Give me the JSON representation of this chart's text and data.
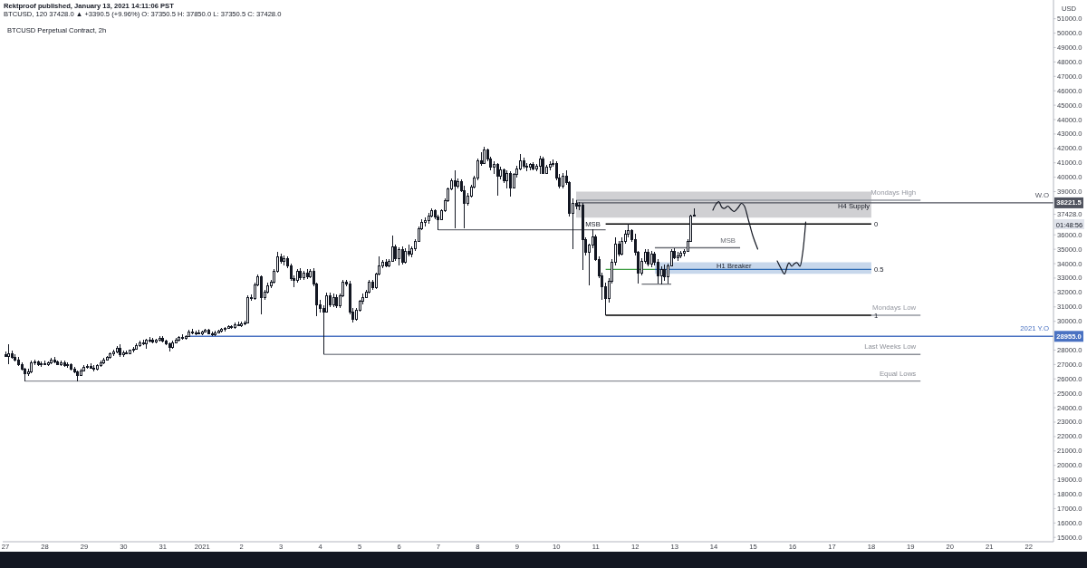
{
  "chart_data": {
    "type": "candlestick",
    "title": "Rektproof published, January 13, 2021 14:11:06 PST",
    "subtitle": "BTCUSD, 120 37428.0 ▲ +3390.5 (+9.96%) O: 37350.5 H: 37850.0 L: 37350.5 C: 37428.0",
    "ylabel": "USD",
    "annotations": [
      "BTCUSD Perpetual Contract, 2h",
      "01:48:56",
      {
        "text": "MSB",
        "x": "2021-01-10T16:00",
        "y": 36750
      },
      {
        "text": "H4 Supply",
        "x": "2021-01-17T02:00",
        "y": 38050
      },
      {
        "text": "H1 Breaker",
        "x": "2021-01-14T00:00",
        "y": 33850
      },
      {
        "text": "0",
        "x": "2021-01-18T00:00",
        "y": 36750
      },
      {
        "text": "0.5",
        "x": "2021-01-18T00:00",
        "y": 33600
      },
      {
        "text": "1",
        "x": "2021-01-18T00:00",
        "y": 30420
      }
    ],
    "xlim": [
      "2020-12-26T22:20",
      "2021-01-22T15:05"
    ],
    "xticks": [
      {
        "value": "2020-12-27",
        "label": "27"
      },
      {
        "value": "2020-12-28",
        "label": "28"
      },
      {
        "value": "2020-12-29",
        "label": "29"
      },
      {
        "value": "2020-12-30",
        "label": "30"
      },
      {
        "value": "2020-12-31",
        "label": "31"
      },
      {
        "value": "2021-01-01",
        "label": "2021"
      },
      {
        "value": "2021-01-02",
        "label": "2"
      },
      {
        "value": "2021-01-03",
        "label": "3"
      },
      {
        "value": "2021-01-04",
        "label": "4"
      },
      {
        "value": "2021-01-05",
        "label": "5"
      },
      {
        "value": "2021-01-06",
        "label": "6"
      },
      {
        "value": "2021-01-07",
        "label": "7"
      },
      {
        "value": "2021-01-08",
        "label": "8"
      },
      {
        "value": "2021-01-09",
        "label": "9"
      },
      {
        "value": "2021-01-10",
        "label": "10"
      },
      {
        "value": "2021-01-11",
        "label": "11"
      },
      {
        "value": "2021-01-12",
        "label": "12"
      },
      {
        "value": "2021-01-13",
        "label": "13"
      },
      {
        "value": "2021-01-14",
        "label": "14"
      },
      {
        "value": "2021-01-15",
        "label": "15"
      },
      {
        "value": "2021-01-16",
        "label": "16"
      },
      {
        "value": "2021-01-17",
        "label": "17"
      },
      {
        "value": "2021-01-18",
        "label": "18"
      },
      {
        "value": "2021-01-19",
        "label": "19"
      },
      {
        "value": "2021-01-20",
        "label": "20"
      },
      {
        "value": "2021-01-21",
        "label": "21"
      },
      {
        "value": "2021-01-22",
        "label": "22"
      }
    ],
    "ylim": [
      14700,
      52300
    ],
    "yticks": [
      {
        "value": 15000,
        "label": "15000.0"
      },
      {
        "value": 16000,
        "label": "16000.0"
      },
      {
        "value": 17000,
        "label": "17000.0"
      },
      {
        "value": 18000,
        "label": "18000.0"
      },
      {
        "value": 19000,
        "label": "19000.0"
      },
      {
        "value": 20000,
        "label": "20000.0"
      },
      {
        "value": 21000,
        "label": "21000.0"
      },
      {
        "value": 22000,
        "label": "22000.0"
      },
      {
        "value": 23000,
        "label": "23000.0"
      },
      {
        "value": 24000,
        "label": "24000.0"
      },
      {
        "value": 25000,
        "label": "25000.0"
      },
      {
        "value": 26000,
        "label": "26000.0"
      },
      {
        "value": 27000,
        "label": "27000.0"
      },
      {
        "value": 28000,
        "label": "28000.0"
      },
      {
        "value": 30000,
        "label": "30000.0"
      },
      {
        "value": 31000,
        "label": "31000.0"
      },
      {
        "value": 32000,
        "label": "32000.0"
      },
      {
        "value": 33000,
        "label": "33000.0"
      },
      {
        "value": 34000,
        "label": "34000.0"
      },
      {
        "value": 35000,
        "label": "35000.0"
      },
      {
        "value": 36000,
        "label": "36000.0"
      },
      {
        "value": 37428,
        "label": "37428.0"
      },
      {
        "value": 39000,
        "label": "39000.0"
      },
      {
        "value": 40000,
        "label": "40000.0"
      },
      {
        "value": 41000,
        "label": "41000.0"
      },
      {
        "value": 42000,
        "label": "42000.0"
      },
      {
        "value": 43000,
        "label": "43000.0"
      },
      {
        "value": 44000,
        "label": "44000.0"
      },
      {
        "value": 45000,
        "label": "45000.0"
      },
      {
        "value": 46000,
        "label": "46000.0"
      },
      {
        "value": 47000,
        "label": "47000.0"
      },
      {
        "value": 48000,
        "label": "48000.0"
      },
      {
        "value": 49000,
        "label": "49000.0"
      },
      {
        "value": 50000,
        "label": "50000.0"
      },
      {
        "value": 51000,
        "label": "51000.0"
      }
    ],
    "color": "#131722",
    "x": [
      "2020-12-27T00:00",
      "2020-12-27T02:00",
      "2020-12-27T04:00",
      "2020-12-27T06:00",
      "2020-12-27T08:00",
      "2020-12-27T10:00",
      "2020-12-27T12:00",
      "2020-12-27T14:00",
      "2020-12-27T16:00",
      "2020-12-27T18:00",
      "2020-12-27T20:00",
      "2020-12-27T22:00",
      "2020-12-28T00:00",
      "2020-12-28T02:00",
      "2020-12-28T04:00",
      "2020-12-28T06:00",
      "2020-12-28T08:00",
      "2020-12-28T10:00",
      "2020-12-28T12:00",
      "2020-12-28T14:00",
      "2020-12-28T16:00",
      "2020-12-28T18:00",
      "2020-12-28T20:00",
      "2020-12-28T22:00",
      "2020-12-29T00:00",
      "2020-12-29T02:00",
      "2020-12-29T04:00",
      "2020-12-29T06:00",
      "2020-12-29T08:00",
      "2020-12-29T10:00",
      "2020-12-29T12:00",
      "2020-12-29T14:00",
      "2020-12-29T16:00",
      "2020-12-29T18:00",
      "2020-12-29T20:00",
      "2020-12-29T22:00",
      "2020-12-30T00:00",
      "2020-12-30T02:00",
      "2020-12-30T04:00",
      "2020-12-30T06:00",
      "2020-12-30T08:00",
      "2020-12-30T10:00",
      "2020-12-30T12:00",
      "2020-12-30T14:00",
      "2020-12-30T16:00",
      "2020-12-30T18:00",
      "2020-12-30T20:00",
      "2020-12-30T22:00",
      "2020-12-31T00:00",
      "2020-12-31T02:00",
      "2020-12-31T04:00",
      "2020-12-31T06:00",
      "2020-12-31T08:00",
      "2020-12-31T10:00",
      "2020-12-31T12:00",
      "2020-12-31T14:00",
      "2020-12-31T16:00",
      "2020-12-31T18:00",
      "2020-12-31T20:00",
      "2020-12-31T22:00",
      "2021-01-01T00:00",
      "2021-01-01T02:00",
      "2021-01-01T04:00",
      "2021-01-01T06:00",
      "2021-01-01T08:00",
      "2021-01-01T10:00",
      "2021-01-01T12:00",
      "2021-01-01T14:00",
      "2021-01-01T16:00",
      "2021-01-01T18:00",
      "2021-01-01T20:00",
      "2021-01-01T22:00",
      "2021-01-02T00:00",
      "2021-01-02T02:00",
      "2021-01-02T04:00",
      "2021-01-02T06:00",
      "2021-01-02T08:00",
      "2021-01-02T10:00",
      "2021-01-02T12:00",
      "2021-01-02T14:00",
      "2021-01-02T16:00",
      "2021-01-02T18:00",
      "2021-01-02T20:00",
      "2021-01-02T22:00",
      "2021-01-03T00:00",
      "2021-01-03T02:00",
      "2021-01-03T04:00",
      "2021-01-03T06:00",
      "2021-01-03T08:00",
      "2021-01-03T10:00",
      "2021-01-03T12:00",
      "2021-01-03T14:00",
      "2021-01-03T16:00",
      "2021-01-03T18:00",
      "2021-01-03T20:00",
      "2021-01-03T22:00",
      "2021-01-04T00:00",
      "2021-01-04T02:00",
      "2021-01-04T04:00",
      "2021-01-04T06:00",
      "2021-01-04T08:00",
      "2021-01-04T10:00",
      "2021-01-04T12:00",
      "2021-01-04T14:00",
      "2021-01-04T16:00",
      "2021-01-04T18:00",
      "2021-01-04T20:00",
      "2021-01-04T22:00",
      "2021-01-05T00:00",
      "2021-01-05T02:00",
      "2021-01-05T04:00",
      "2021-01-05T06:00",
      "2021-01-05T08:00",
      "2021-01-05T10:00",
      "2021-01-05T12:00",
      "2021-01-05T14:00",
      "2021-01-05T16:00",
      "2021-01-05T18:00",
      "2021-01-05T20:00",
      "2021-01-05T22:00",
      "2021-01-06T00:00",
      "2021-01-06T02:00",
      "2021-01-06T04:00",
      "2021-01-06T06:00",
      "2021-01-06T08:00",
      "2021-01-06T10:00",
      "2021-01-06T12:00",
      "2021-01-06T14:00",
      "2021-01-06T16:00",
      "2021-01-06T18:00",
      "2021-01-06T20:00",
      "2021-01-06T22:00",
      "2021-01-07T00:00",
      "2021-01-07T02:00",
      "2021-01-07T04:00",
      "2021-01-07T06:00",
      "2021-01-07T08:00",
      "2021-01-07T10:00",
      "2021-01-07T12:00",
      "2021-01-07T14:00",
      "2021-01-07T16:00",
      "2021-01-07T18:00",
      "2021-01-07T20:00",
      "2021-01-07T22:00",
      "2021-01-08T00:00",
      "2021-01-08T02:00",
      "2021-01-08T04:00",
      "2021-01-08T06:00",
      "2021-01-08T08:00",
      "2021-01-08T10:00",
      "2021-01-08T12:00",
      "2021-01-08T14:00",
      "2021-01-08T16:00",
      "2021-01-08T18:00",
      "2021-01-08T20:00",
      "2021-01-08T22:00",
      "2021-01-09T00:00",
      "2021-01-09T02:00",
      "2021-01-09T04:00",
      "2021-01-09T06:00",
      "2021-01-09T08:00",
      "2021-01-09T10:00",
      "2021-01-09T12:00",
      "2021-01-09T14:00",
      "2021-01-09T16:00",
      "2021-01-09T18:00",
      "2021-01-09T20:00",
      "2021-01-09T22:00",
      "2021-01-10T00:00",
      "2021-01-10T02:00",
      "2021-01-10T04:00",
      "2021-01-10T06:00",
      "2021-01-10T08:00",
      "2021-01-10T10:00",
      "2021-01-10T12:00",
      "2021-01-10T14:00",
      "2021-01-10T16:00",
      "2021-01-10T18:00",
      "2021-01-10T20:00",
      "2021-01-10T22:00",
      "2021-01-11T00:00",
      "2021-01-11T02:00",
      "2021-01-11T04:00",
      "2021-01-11T06:00",
      "2021-01-11T08:00",
      "2021-01-11T10:00",
      "2021-01-11T12:00",
      "2021-01-11T14:00",
      "2021-01-11T16:00",
      "2021-01-11T18:00",
      "2021-01-11T20:00",
      "2021-01-11T22:00",
      "2021-01-12T00:00",
      "2021-01-12T02:00",
      "2021-01-12T04:00",
      "2021-01-12T06:00",
      "2021-01-12T08:00",
      "2021-01-12T10:00",
      "2021-01-12T12:00",
      "2021-01-12T14:00",
      "2021-01-12T16:00",
      "2021-01-12T18:00",
      "2021-01-12T20:00",
      "2021-01-12T22:00",
      "2021-01-13T00:00",
      "2021-01-13T02:00",
      "2021-01-13T04:00",
      "2021-01-13T06:00",
      "2021-01-13T08:00",
      "2021-01-13T10:00",
      "2021-01-13T12:00"
    ],
    "ohlc": [
      [
        27700,
        27900,
        27500,
        27600
      ],
      [
        27600,
        28400,
        27000,
        27800
      ],
      [
        27800,
        27950,
        27400,
        27500
      ],
      [
        27500,
        27700,
        27200,
        27350
      ],
      [
        27350,
        27500,
        26900,
        27000
      ],
      [
        27000,
        27150,
        26600,
        26700
      ],
      [
        26700,
        26800,
        25850,
        26400
      ],
      [
        26400,
        26700,
        26200,
        26500
      ],
      [
        26500,
        27300,
        26400,
        27150
      ],
      [
        27150,
        27350,
        26950,
        27200
      ],
      [
        27200,
        27300,
        26900,
        27050
      ],
      [
        27050,
        27200,
        26850,
        27100
      ],
      [
        27100,
        27250,
        26950,
        27050
      ],
      [
        27050,
        27200,
        26900,
        27150
      ],
      [
        27150,
        27450,
        27050,
        27350
      ],
      [
        27350,
        27500,
        27100,
        27200
      ],
      [
        27200,
        27300,
        26950,
        27050
      ],
      [
        27050,
        27250,
        26900,
        27150
      ],
      [
        27150,
        27300,
        26850,
        26950
      ],
      [
        26950,
        27150,
        26800,
        27050
      ],
      [
        27050,
        27100,
        26600,
        26700
      ],
      [
        26700,
        26850,
        26400,
        26500
      ],
      [
        26500,
        26600,
        25850,
        26300
      ],
      [
        26300,
        26700,
        26200,
        26600
      ],
      [
        26600,
        26950,
        26500,
        26850
      ],
      [
        26850,
        27000,
        26700,
        26900
      ],
      [
        26900,
        27100,
        26750,
        26800
      ],
      [
        26800,
        26950,
        26500,
        26700
      ],
      [
        26700,
        27050,
        26600,
        26950
      ],
      [
        26950,
        27250,
        26850,
        27150
      ],
      [
        27150,
        27450,
        27000,
        27350
      ],
      [
        27350,
        27600,
        27250,
        27500
      ],
      [
        27500,
        27850,
        27400,
        27750
      ],
      [
        27750,
        28000,
        27600,
        27900
      ],
      [
        27900,
        28250,
        27800,
        28150
      ],
      [
        28150,
        28430,
        27500,
        27700
      ],
      [
        27700,
        27950,
        27550,
        27850
      ],
      [
        27850,
        27950,
        27700,
        27800
      ],
      [
        27800,
        28050,
        27700,
        28000
      ],
      [
        28000,
        28200,
        27850,
        28100
      ],
      [
        28100,
        28450,
        28000,
        28350
      ],
      [
        28350,
        28650,
        28200,
        28550
      ],
      [
        28550,
        28750,
        28350,
        28450
      ],
      [
        28450,
        28800,
        28100,
        28700
      ],
      [
        28700,
        28900,
        28550,
        28750
      ],
      [
        28750,
        28850,
        28500,
        28600
      ],
      [
        28600,
        28800,
        28450,
        28700
      ],
      [
        28700,
        28950,
        28600,
        28850
      ],
      [
        28850,
        28950,
        28550,
        28650
      ],
      [
        28650,
        28750,
        28350,
        28450
      ],
      [
        28450,
        28550,
        27900,
        28200
      ],
      [
        28200,
        28650,
        28100,
        28550
      ],
      [
        28550,
        28850,
        28450,
        28750
      ],
      [
        28750,
        29000,
        28600,
        28900
      ],
      [
        28900,
        29100,
        28750,
        28850
      ],
      [
        28850,
        29050,
        28700,
        28950
      ],
      [
        28950,
        29400,
        28900,
        29300
      ],
      [
        29300,
        29450,
        29100,
        29200
      ],
      [
        29200,
        29350,
        29050,
        29250
      ],
      [
        29250,
        29400,
        29100,
        29150
      ],
      [
        29150,
        29350,
        29050,
        29300
      ],
      [
        29300,
        29500,
        29200,
        29400
      ],
      [
        29400,
        29450,
        29100,
        29150
      ],
      [
        29150,
        29300,
        28950,
        29100
      ],
      [
        29100,
        29350,
        29000,
        29250
      ],
      [
        29250,
        29400,
        29150,
        29350
      ],
      [
        29350,
        29550,
        29250,
        29450
      ],
      [
        29450,
        29600,
        29300,
        29550
      ],
      [
        29550,
        29750,
        29450,
        29650
      ],
      [
        29650,
        29750,
        29450,
        29600
      ],
      [
        29600,
        29900,
        29500,
        29800
      ],
      [
        29800,
        29950,
        29650,
        29750
      ],
      [
        29750,
        29950,
        29600,
        29850
      ],
      [
        29850,
        30050,
        29700,
        29900
      ],
      [
        29900,
        31800,
        29850,
        31700
      ],
      [
        31700,
        31850,
        31450,
        31600
      ],
      [
        31600,
        32700,
        31500,
        32550
      ],
      [
        32550,
        33250,
        32400,
        33100
      ],
      [
        33100,
        33200,
        30500,
        31700
      ],
      [
        31700,
        32200,
        31500,
        32050
      ],
      [
        32050,
        32700,
        31900,
        32500
      ],
      [
        32500,
        32900,
        32300,
        32750
      ],
      [
        32750,
        33600,
        32650,
        33500
      ],
      [
        33500,
        34840,
        33400,
        34500
      ],
      [
        34500,
        34700,
        34000,
        34200
      ],
      [
        34200,
        34550,
        33900,
        34400
      ],
      [
        34400,
        34500,
        33700,
        33900
      ],
      [
        33900,
        34000,
        32800,
        33000
      ],
      [
        33000,
        33200,
        32390,
        32850
      ],
      [
        32850,
        33650,
        32700,
        33500
      ],
      [
        33500,
        33700,
        32850,
        33050
      ],
      [
        33050,
        33500,
        32900,
        33350
      ],
      [
        33350,
        33600,
        32950,
        33100
      ],
      [
        33100,
        33650,
        33000,
        33500
      ],
      [
        33500,
        33700,
        32400,
        32600
      ],
      [
        32600,
        32700,
        30380,
        31200
      ],
      [
        31200,
        31500,
        30600,
        30900
      ],
      [
        30900,
        31100,
        27700,
        30700
      ],
      [
        30700,
        32000,
        30600,
        31800
      ],
      [
        31800,
        32000,
        31000,
        31200
      ],
      [
        31200,
        31900,
        31000,
        31700
      ],
      [
        31700,
        31850,
        30950,
        31100
      ],
      [
        31100,
        31900,
        30950,
        31800
      ],
      [
        31800,
        32900,
        31700,
        32750
      ],
      [
        32750,
        32900,
        32400,
        32600
      ],
      [
        32600,
        32800,
        30500,
        30700
      ],
      [
        30700,
        30900,
        29940,
        30150
      ],
      [
        30150,
        30950,
        30050,
        30800
      ],
      [
        30800,
        31500,
        30700,
        31400
      ],
      [
        31400,
        31900,
        31200,
        31700
      ],
      [
        31700,
        32200,
        31600,
        32050
      ],
      [
        32050,
        32850,
        31900,
        32750
      ],
      [
        32750,
        32900,
        32200,
        32350
      ],
      [
        32350,
        33400,
        32250,
        33300
      ],
      [
        33300,
        34500,
        33200,
        33900
      ],
      [
        33900,
        34250,
        33700,
        34100
      ],
      [
        34100,
        34300,
        33750,
        33850
      ],
      [
        33850,
        34300,
        33750,
        34200
      ],
      [
        34200,
        35980,
        34100,
        35200
      ],
      [
        35200,
        35300,
        34200,
        34400
      ],
      [
        34400,
        35160,
        33900,
        35000
      ],
      [
        35000,
        35200,
        33950,
        34100
      ],
      [
        34100,
        35100,
        34000,
        34900
      ],
      [
        34900,
        35300,
        34500,
        34700
      ],
      [
        34700,
        35200,
        34450,
        35100
      ],
      [
        35100,
        35700,
        34900,
        35600
      ],
      [
        35600,
        36600,
        35500,
        36450
      ],
      [
        36450,
        37100,
        36350,
        36900
      ],
      [
        36900,
        37200,
        36600,
        37000
      ],
      [
        37000,
        37500,
        36800,
        37350
      ],
      [
        37350,
        37860,
        37200,
        37700
      ],
      [
        37700,
        37800,
        37100,
        37250
      ],
      [
        37250,
        37400,
        36350,
        37100
      ],
      [
        37100,
        37800,
        37000,
        37700
      ],
      [
        37700,
        38500,
        37600,
        38400
      ],
      [
        38400,
        39300,
        38300,
        39200
      ],
      [
        39200,
        39900,
        39100,
        39800
      ],
      [
        39800,
        40500,
        36480,
        39400
      ],
      [
        39400,
        39900,
        39200,
        39700
      ],
      [
        39700,
        39850,
        39000,
        39100
      ],
      [
        39100,
        39400,
        36480,
        38200
      ],
      [
        38200,
        38900,
        38050,
        38750
      ],
      [
        38750,
        39450,
        38600,
        39350
      ],
      [
        39350,
        40100,
        39200,
        39950
      ],
      [
        39950,
        41320,
        39800,
        41200
      ],
      [
        41200,
        41760,
        40800,
        41000
      ],
      [
        41000,
        42140,
        40900,
        41900
      ],
      [
        41900,
        42000,
        41100,
        41300
      ],
      [
        41300,
        41400,
        40500,
        40700
      ],
      [
        40700,
        41130,
        40200,
        40900
      ],
      [
        40900,
        41000,
        38700,
        40100
      ],
      [
        40100,
        40700,
        39880,
        40550
      ],
      [
        40550,
        40600,
        39600,
        39800
      ],
      [
        39800,
        40500,
        39250,
        40300
      ],
      [
        40300,
        40400,
        38680,
        39300
      ],
      [
        39300,
        40300,
        39200,
        40200
      ],
      [
        40200,
        40800,
        40000,
        40600
      ],
      [
        40600,
        41640,
        40500,
        41200
      ],
      [
        41200,
        41350,
        40600,
        40800
      ],
      [
        40800,
        41000,
        40400,
        40700
      ],
      [
        40700,
        41000,
        40450,
        40900
      ],
      [
        40900,
        41050,
        40500,
        40600
      ],
      [
        40600,
        40900,
        40400,
        40800
      ],
      [
        40800,
        41510,
        40250,
        41300
      ],
      [
        41300,
        41400,
        40200,
        40300
      ],
      [
        40300,
        40850,
        40200,
        40700
      ],
      [
        40700,
        41100,
        40500,
        40900
      ],
      [
        40900,
        41250,
        40700,
        41000
      ],
      [
        41000,
        41100,
        39800,
        40000
      ],
      [
        40000,
        40200,
        39250,
        39400
      ],
      [
        39400,
        40300,
        39250,
        40100
      ],
      [
        40100,
        40500,
        39500,
        39650
      ],
      [
        39650,
        39700,
        37300,
        37500
      ],
      [
        37500,
        38500,
        35030,
        38200
      ],
      [
        38200,
        38400,
        37800,
        38000
      ],
      [
        38000,
        38300,
        37700,
        38100
      ],
      [
        38100,
        38200,
        33590,
        35700
      ],
      [
        35700,
        35850,
        34600,
        34800
      ],
      [
        34800,
        35400,
        32520,
        35300
      ],
      [
        35300,
        36420,
        35100,
        35900
      ],
      [
        35900,
        36000,
        34200,
        34300
      ],
      [
        34300,
        34500,
        33000,
        33200
      ],
      [
        33200,
        33400,
        31500,
        32400
      ],
      [
        32400,
        32700,
        30420,
        31600
      ],
      [
        31600,
        33000,
        31300,
        32800
      ],
      [
        32800,
        34300,
        32600,
        34100
      ],
      [
        34100,
        35850,
        33900,
        35400
      ],
      [
        35400,
        35600,
        34500,
        34700
      ],
      [
        34700,
        35850,
        34600,
        35600
      ],
      [
        35600,
        36300,
        35400,
        36100
      ],
      [
        36100,
        36750,
        35800,
        36300
      ],
      [
        36300,
        36400,
        35500,
        35700
      ],
      [
        35700,
        36100,
        34600,
        34800
      ],
      [
        34800,
        34900,
        32640,
        33350
      ],
      [
        33350,
        34400,
        33200,
        34200
      ],
      [
        34200,
        35030,
        34000,
        34800
      ],
      [
        34800,
        35000,
        33800,
        34000
      ],
      [
        34000,
        34900,
        33770,
        34700
      ],
      [
        34700,
        34840,
        33900,
        34100
      ],
      [
        34100,
        34300,
        32600,
        33200
      ],
      [
        33200,
        33800,
        32580,
        33600
      ],
      [
        33600,
        33960,
        32800,
        33150
      ],
      [
        33150,
        34000,
        32600,
        33900
      ],
      [
        33900,
        35030,
        33800,
        34900
      ],
      [
        34900,
        35100,
        34300,
        34450
      ],
      [
        34450,
        34800,
        34200,
        34600
      ],
      [
        34600,
        34900,
        34350,
        34750
      ],
      [
        34750,
        35000,
        34500,
        34900
      ],
      [
        34900,
        35700,
        34800,
        35600
      ],
      [
        35600,
        37400,
        35500,
        37350.5
      ],
      [
        37350.5,
        37850,
        37350.5,
        37428
      ]
    ],
    "series": [
      {
        "type": "line",
        "name": "W.O",
        "x": [
          "2021-01-10T12:00",
          "2021-01-18T00:00",
          "2021-01-22T15:05"
        ],
        "values": [
          38221.5,
          38221.5,
          38221.5
        ],
        "lower": [
          37200,
          37200,
          null
        ],
        "upper": [
          39000,
          39000,
          null
        ],
        "color": "#50535e",
        "value_labels": [
          null,
          null,
          "38221.5"
        ]
      },
      {
        "type": "line",
        "x": [
          "2021-01-12T12:00",
          "2021-01-18T00:00"
        ],
        "values": [
          33600,
          33600
        ],
        "lower": [
          33300,
          33300
        ],
        "upper": [
          34100,
          34100
        ],
        "color": "#2f6db5"
      },
      {
        "type": "line",
        "x": [
          "2021-01-07T00:00",
          "2021-01-11T06:00"
        ],
        "values": [
          36350,
          36350
        ],
        "color": "#6b6e75"
      },
      {
        "type": "line",
        "x": [
          "2021-01-11T06:00",
          "2021-01-18T00:00"
        ],
        "values": [
          36750,
          36750
        ],
        "color": "#000000"
      },
      {
        "type": "line",
        "x": [
          "2021-01-11T06:00",
          "2021-01-12T12:00"
        ],
        "values": [
          33600,
          33600
        ],
        "color": "#43a047"
      },
      {
        "type": "line",
        "x": [
          "2021-01-11T06:00",
          "2021-01-18T00:00"
        ],
        "values": [
          30420,
          30420
        ],
        "color": "#000000"
      },
      {
        "type": "line",
        "name": "MSB",
        "x": [
          "2021-01-12T12:00",
          "2021-01-14T16:00"
        ],
        "values": [
          35100,
          35100
        ],
        "color": "#6b6e75"
      },
      {
        "type": "line",
        "x": [
          "2021-01-12T04:00",
          "2021-01-12T22:00"
        ],
        "values": [
          32580,
          32580
        ],
        "color": "#6b6e75"
      },
      {
        "type": "line",
        "name": "Mondays High",
        "x": [
          "2021-01-10T12:00",
          "2021-01-19T06:00"
        ],
        "values": [
          38400,
          38400
        ],
        "color": "#9598a1"
      },
      {
        "type": "line",
        "name": "Mondays Low",
        "x": [
          "2021-01-18T00:00",
          "2021-01-19T06:00"
        ],
        "values": [
          30420,
          30420
        ],
        "color": "#9598a1"
      },
      {
        "type": "line",
        "name": "2021 Y.O",
        "x": [
          "2020-12-31T16:00",
          "2021-01-22T15:05"
        ],
        "values": [
          28955,
          28955
        ],
        "color": "#4a72c2",
        "value_labels": [
          null,
          "28955.0"
        ]
      },
      {
        "type": "line",
        "name": "Last Weeks Low",
        "x": [
          "2021-01-04T02:00",
          "2021-01-19T06:00"
        ],
        "values": [
          27700,
          27700
        ],
        "color": "#8c8f97"
      },
      {
        "type": "line",
        "name": "Equal Lows",
        "x": [
          "2020-12-27T12:00",
          "2021-01-19T06:00"
        ],
        "values": [
          25850,
          25850
        ],
        "color": "#8c8f97"
      }
    ]
  }
}
